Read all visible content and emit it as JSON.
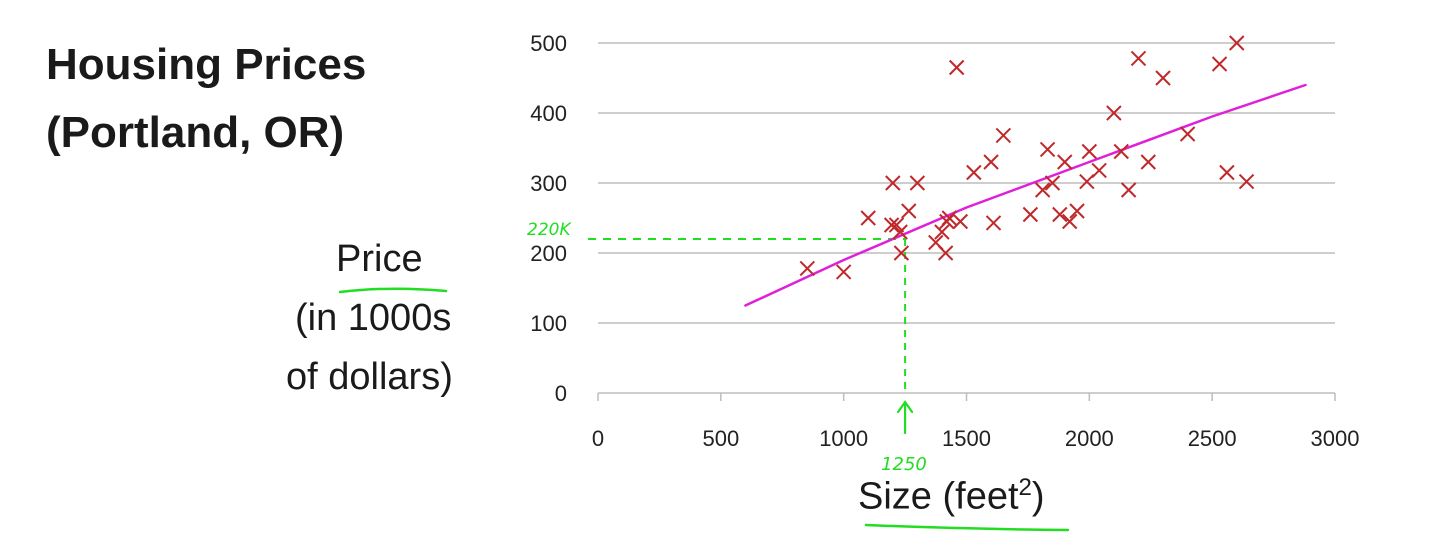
{
  "title_line1": "Housing Prices",
  "title_line2": "(Portland, OR)",
  "ylabel_line1": "Price",
  "ylabel_line2": "(in 1000s",
  "ylabel_line3": "of dollars)",
  "xlabel_main": "Size (feet",
  "xlabel_sup": "2",
  "xlabel_close": ")",
  "annotations": {
    "price_mark": "220K",
    "size_mark": "1250"
  },
  "colors": {
    "points": "#c0292b",
    "fit_line": "#e020d8",
    "annotation": "#22dd22",
    "grid": "#bdbdbd"
  },
  "chart_data": {
    "type": "scatter",
    "title": "Housing Prices (Portland, OR)",
    "xlabel": "Size (feet²)",
    "ylabel": "Price (in 1000s of dollars)",
    "xlim": [
      0,
      3000
    ],
    "ylim": [
      0,
      500
    ],
    "xticks": [
      0,
      500,
      1000,
      1500,
      2000,
      2500,
      3000
    ],
    "yticks": [
      0,
      100,
      200,
      300,
      400,
      500
    ],
    "grid": "horizontal",
    "marker": "x",
    "points": [
      [
        852,
        178
      ],
      [
        1000,
        173
      ],
      [
        1100,
        250
      ],
      [
        1195,
        240
      ],
      [
        1200,
        300
      ],
      [
        1215,
        240
      ],
      [
        1230,
        230
      ],
      [
        1235,
        200
      ],
      [
        1265,
        260
      ],
      [
        1300,
        300
      ],
      [
        1375,
        215
      ],
      [
        1400,
        230
      ],
      [
        1415,
        200
      ],
      [
        1420,
        245
      ],
      [
        1430,
        250
      ],
      [
        1460,
        465
      ],
      [
        1475,
        245
      ],
      [
        1530,
        315
      ],
      [
        1600,
        330
      ],
      [
        1610,
        243
      ],
      [
        1650,
        368
      ],
      [
        1760,
        255
      ],
      [
        1810,
        290
      ],
      [
        1830,
        348
      ],
      [
        1850,
        300
      ],
      [
        1880,
        255
      ],
      [
        1900,
        330
      ],
      [
        1920,
        245
      ],
      [
        1950,
        260
      ],
      [
        1990,
        302
      ],
      [
        2000,
        345
      ],
      [
        2040,
        318
      ],
      [
        2100,
        400
      ],
      [
        2130,
        345
      ],
      [
        2160,
        290
      ],
      [
        2200,
        478
      ],
      [
        2240,
        330
      ],
      [
        2300,
        450
      ],
      [
        2400,
        370
      ],
      [
        2530,
        470
      ],
      [
        2560,
        315
      ],
      [
        2600,
        500
      ],
      [
        2640,
        302
      ]
    ],
    "fit_line": {
      "x": [
        600,
        1000,
        1500,
        2000,
        2500,
        2880
      ],
      "y": [
        125,
        190,
        265,
        330,
        395,
        440
      ]
    },
    "annotations": [
      {
        "type": "vertical_dashed",
        "x": 1250,
        "label": "1250"
      },
      {
        "type": "horizontal_dashed",
        "y": 220,
        "label": "220K"
      }
    ]
  }
}
